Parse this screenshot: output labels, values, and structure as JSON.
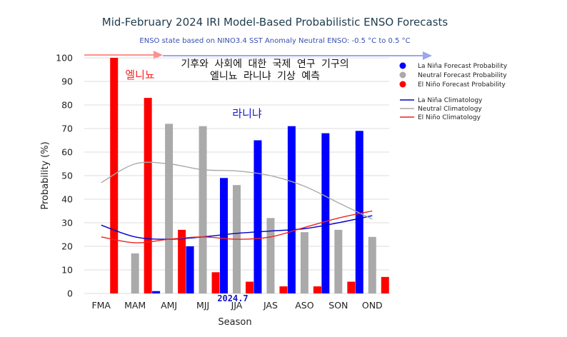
{
  "chart_data": {
    "type": "bar",
    "title": "Mid-February 2024 IRI Model-Based Probabilistic ENSO Forecasts",
    "subtitle": "ENSO state based on NINO3.4 SST Anomaly Neutral ENSO: -0.5 °C to 0.5 °C",
    "xlabel": "Season",
    "ylabel": "Probability (%)",
    "ylim": [
      0,
      100
    ],
    "yticks": [
      "0",
      "10",
      "20",
      "30",
      "40",
      "50",
      "60",
      "70",
      "80",
      "90",
      "100"
    ],
    "categories": [
      "FMA",
      "MAM",
      "AMJ",
      "MJJ",
      "JJA",
      "JAS",
      "ASO",
      "SON",
      "OND"
    ],
    "series": [
      {
        "name": "La Niña Forecast Probability",
        "color": "#0000ff",
        "values": [
          0,
          0,
          1,
          20,
          49,
          65,
          71,
          68,
          69
        ]
      },
      {
        "name": "Neutral Forecast Probability",
        "color": "#aaaaaa",
        "values": [
          0,
          17,
          72,
          71,
          46,
          32,
          26,
          27,
          24
        ]
      },
      {
        "name": "El Niño Forecast Probability",
        "color": "#ff0000",
        "values": [
          100,
          83,
          27,
          9,
          5,
          3,
          3,
          5,
          7
        ]
      }
    ],
    "climatology": [
      {
        "name": "La Niña Climatology",
        "color": "#0000cc",
        "values": [
          29,
          24,
          23,
          24,
          25.5,
          26.5,
          27.5,
          30,
          33
        ]
      },
      {
        "name": "Neutral Climatology",
        "color": "#aaaaaa",
        "values": [
          47,
          55,
          55,
          52.5,
          52,
          50,
          45.5,
          38.5,
          31.5
        ]
      },
      {
        "name": "El Niño Climatology",
        "color": "#ee2222",
        "values": [
          24,
          21.5,
          23,
          24,
          23,
          24,
          28,
          32,
          35
        ]
      }
    ],
    "annotations": {
      "korean_title_line1": "기후와 사회에 대한 국제 연구 기구의",
      "korean_title_line2": "엘니뇨 라니냐 기상 예측",
      "el_nino_label": "엘니뇨",
      "la_nina_label": "라니냐",
      "date_marker": "2024.7"
    }
  }
}
